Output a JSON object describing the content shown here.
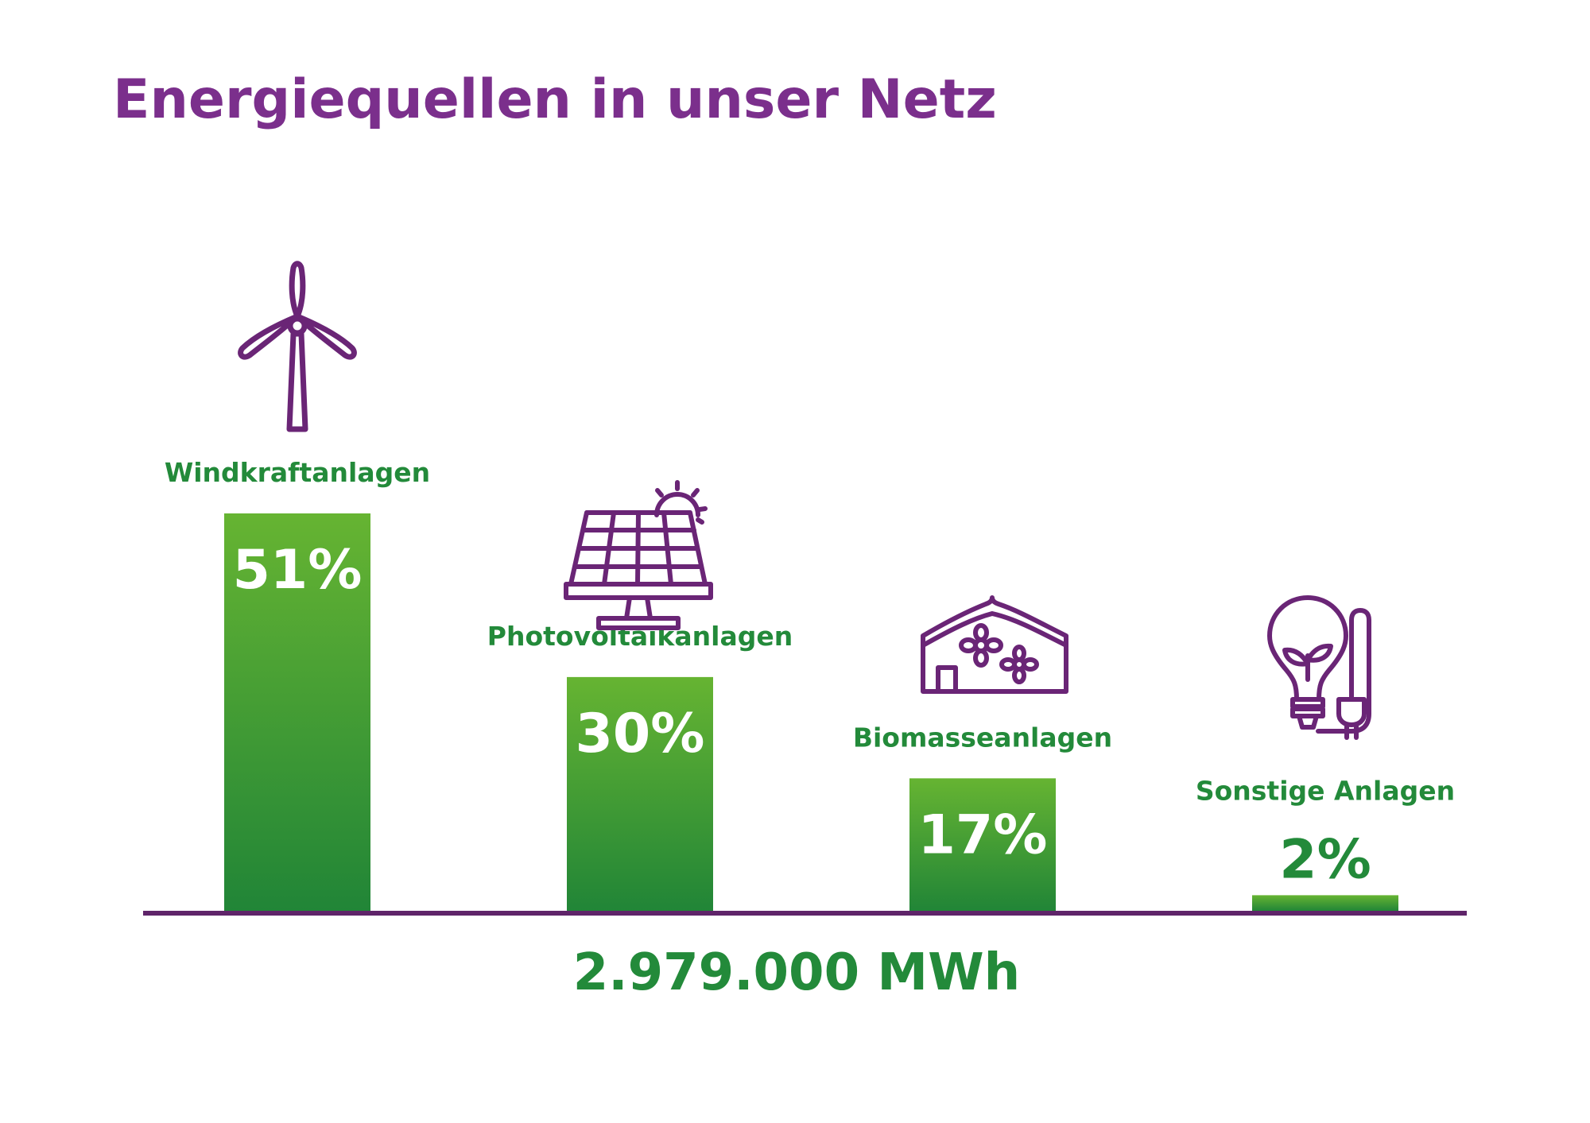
{
  "chart_data": {
    "type": "bar",
    "title": "Energiequellen in unser Netz",
    "categories": [
      "Windkraftanlagen",
      "Photovoltaikanlagen",
      "Biomasseanlagen",
      "Sonstige Anlagen"
    ],
    "values": [
      51,
      30,
      17,
      2
    ],
    "value_labels": [
      "51%",
      "30%",
      "17%",
      "2%"
    ],
    "unit": "%",
    "icons": [
      "wind-turbine-icon",
      "solar-panel-icon",
      "greenhouse-icon",
      "lightbulb-plug-icon"
    ],
    "total_label": "2.979.000 MWh",
    "ylim": [
      0,
      51
    ],
    "grid": false,
    "legend": "none"
  },
  "colors": {
    "title": "#7b2f8c",
    "icon": "#6a2576",
    "axis": "#5f2469",
    "label": "#238a3a",
    "bar_top": "#66b432",
    "bar_bottom": "#218537",
    "value_inside": "#ffffff"
  }
}
